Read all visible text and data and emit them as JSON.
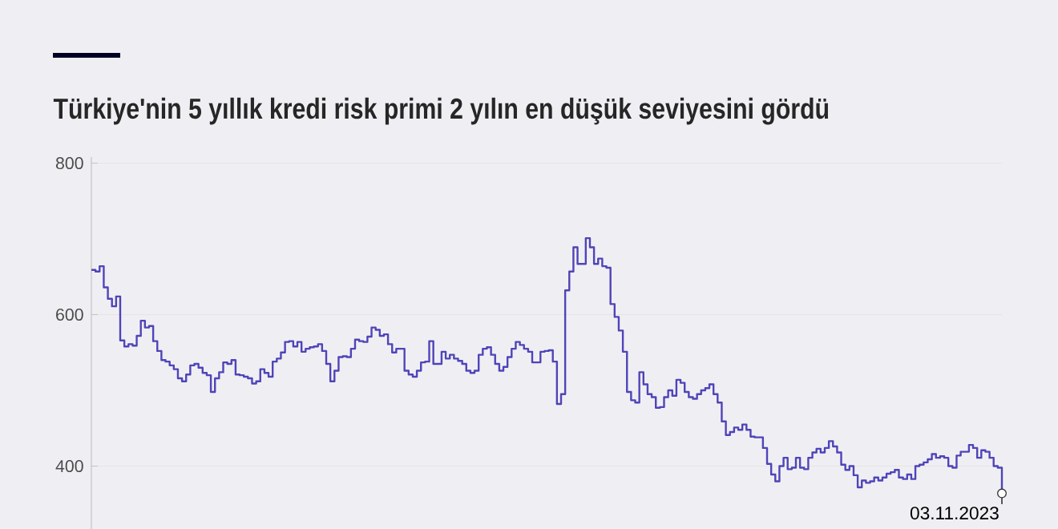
{
  "chart_data": {
    "type": "step",
    "title": "Türkiye'nin 5 yıllık kredi risk primi 2 yılın en düşük seviyesini gördü",
    "categories": [
      null,
      null,
      null,
      null,
      null,
      null,
      null,
      null,
      null,
      null,
      null,
      null,
      null,
      null,
      null,
      null,
      null,
      null,
      null,
      null,
      null,
      null,
      null,
      null,
      null,
      null,
      null,
      null,
      null,
      null,
      null,
      null,
      null,
      null,
      null,
      null,
      null,
      null,
      null,
      null,
      null,
      null,
      null,
      null,
      null,
      null,
      null,
      null,
      null,
      null,
      null,
      null,
      null,
      null,
      null,
      null,
      null,
      null,
      null,
      null,
      null,
      null,
      null,
      null,
      null,
      null,
      null,
      null,
      null,
      null,
      null,
      null,
      null,
      null,
      null,
      null,
      null,
      null,
      null,
      null,
      null,
      null,
      null,
      null,
      null,
      null,
      null,
      null,
      null,
      null,
      null,
      null,
      null,
      null,
      null,
      null,
      null,
      null,
      null,
      null,
      null,
      null,
      null,
      null,
      null,
      null,
      null,
      null,
      null,
      null,
      null,
      null,
      null,
      null,
      null,
      null,
      null,
      null,
      null,
      null,
      null,
      null,
      null,
      null,
      null,
      null,
      null,
      null,
      null,
      null,
      null,
      null,
      null,
      null,
      null,
      null,
      null,
      null,
      null,
      null,
      null,
      null,
      null,
      null,
      null,
      null,
      null,
      null,
      null,
      null,
      null,
      null,
      null,
      null,
      null,
      null,
      null,
      null,
      null,
      null,
      null,
      null,
      null,
      null,
      null,
      null,
      null,
      null,
      null,
      null,
      null,
      null,
      null,
      null,
      null,
      null,
      null,
      null,
      null,
      null,
      null,
      null,
      null,
      null,
      null,
      null,
      null,
      null,
      null,
      null,
      null,
      null,
      null,
      null,
      null,
      null,
      null,
      null,
      null,
      null,
      null,
      null,
      null,
      null,
      null,
      null,
      null,
      null,
      null,
      null,
      null,
      null,
      null,
      null,
      null,
      null,
      null,
      null,
      null,
      null,
      null,
      null
    ],
    "values": [
      659,
      657,
      664,
      636,
      621,
      611,
      624,
      566,
      558,
      561,
      559,
      572,
      592,
      583,
      585,
      565,
      552,
      540,
      538,
      533,
      528,
      516,
      512,
      521,
      533,
      535,
      530,
      523,
      520,
      498,
      516,
      524,
      537,
      535,
      540,
      521,
      520,
      518,
      516,
      509,
      512,
      528,
      523,
      518,
      538,
      542,
      550,
      564,
      565,
      558,
      564,
      551,
      555,
      557,
      558,
      561,
      552,
      535,
      512,
      526,
      544,
      545,
      544,
      555,
      567,
      565,
      564,
      571,
      583,
      580,
      572,
      574,
      561,
      550,
      555,
      555,
      526,
      521,
      518,
      526,
      537,
      538,
      565,
      535,
      535,
      551,
      542,
      547,
      542,
      539,
      535,
      526,
      523,
      526,
      547,
      555,
      557,
      547,
      535,
      526,
      531,
      544,
      555,
      564,
      560,
      555,
      551,
      537,
      537,
      551,
      552,
      553,
      538,
      482,
      495,
      632,
      657,
      689,
      667,
      667,
      701,
      689,
      667,
      674,
      664,
      662,
      614,
      597,
      579,
      551,
      498,
      487,
      484,
      524,
      508,
      495,
      491,
      477,
      478,
      491,
      500,
      493,
      514,
      510,
      498,
      491,
      489,
      495,
      500,
      503,
      508,
      495,
      484,
      459,
      441,
      445,
      451,
      448,
      455,
      448,
      439,
      438,
      438,
      424,
      403,
      389,
      380,
      400,
      411,
      396,
      398,
      411,
      398,
      396,
      411,
      418,
      423,
      418,
      424,
      433,
      426,
      418,
      402,
      395,
      400,
      388,
      372,
      381,
      378,
      380,
      385,
      381,
      385,
      390,
      392,
      395,
      385,
      383,
      389,
      383,
      400,
      402,
      405,
      409,
      416,
      411,
      413,
      411,
      400,
      398,
      414,
      419,
      419,
      428,
      424,
      411,
      421,
      419,
      411,
      400,
      398,
      364
    ],
    "color": "#4f44b8",
    "ylim": [
      317,
      808
    ],
    "yticks": [
      400,
      600,
      800
    ],
    "grid": "y",
    "tick_labels": "y",
    "annotations": [
      "03.11.2023"
    ]
  }
}
